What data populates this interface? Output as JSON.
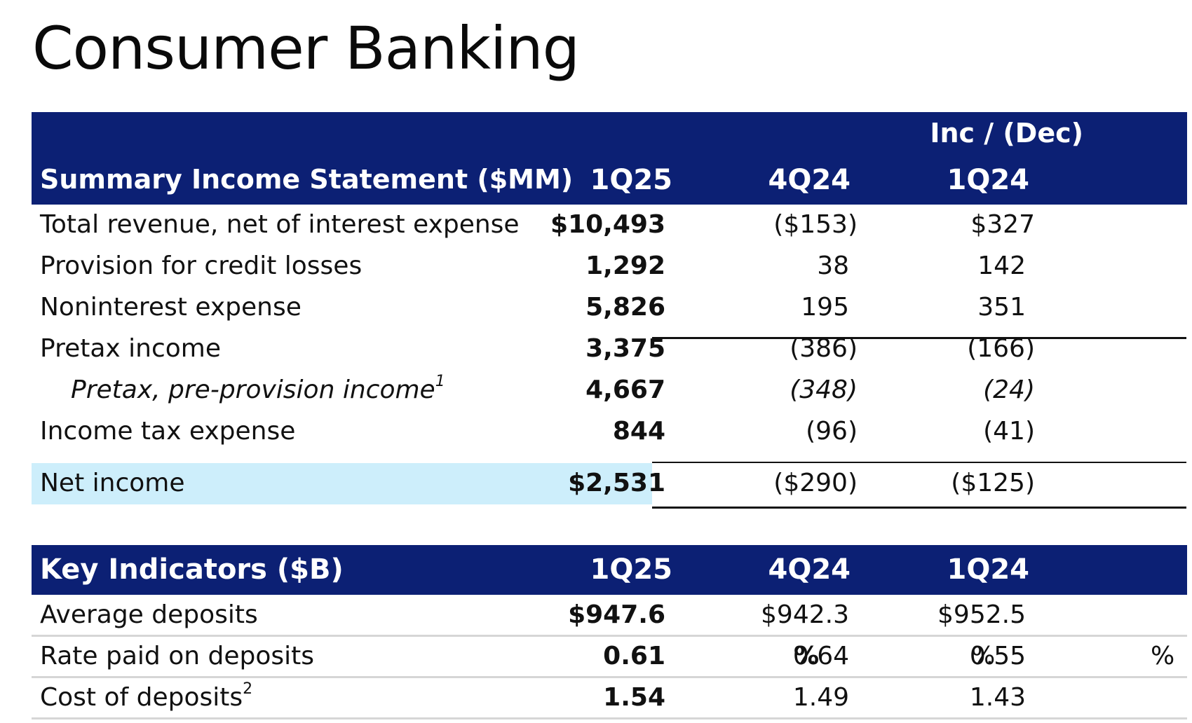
{
  "title": "Consumer Banking",
  "income_table": {
    "group_header": "Inc / (Dec)",
    "title": "Summary Income Statement ($MM)",
    "columns": [
      "1Q25",
      "4Q24",
      "1Q24"
    ],
    "rows": [
      {
        "label": "Total revenue, net of interest expense",
        "values": [
          "$10,493",
          "($153)",
          "$327"
        ]
      },
      {
        "label": "Provision for credit losses",
        "values": [
          "1,292",
          "38",
          "142"
        ]
      },
      {
        "label": "Noninterest expense",
        "values": [
          "5,826",
          "195",
          "351"
        ]
      },
      {
        "label": "Pretax income",
        "values": [
          "3,375",
          "(386)",
          "(166)"
        ]
      },
      {
        "label": "Pretax, pre-provision income",
        "footnote": "1",
        "values": [
          "4,667",
          "(348)",
          "(24)"
        ]
      },
      {
        "label": "Income tax expense",
        "values": [
          "844",
          "(96)",
          "(41)"
        ]
      },
      {
        "label": "Net income",
        "values": [
          "$2,531",
          "($290)",
          "($125)"
        ]
      }
    ]
  },
  "indicators_table": {
    "title": "Key Indicators ($B)",
    "columns": [
      "1Q25",
      "4Q24",
      "1Q24"
    ],
    "rows": [
      {
        "label": "Average deposits",
        "values": [
          "$947.6",
          "$942.3",
          "$952.5"
        ]
      },
      {
        "label": "Rate paid on deposits",
        "values": [
          "0.61",
          "0.64",
          "0.55"
        ],
        "unit": "%"
      },
      {
        "label": "Cost of deposits",
        "footnote": "2",
        "values": [
          "1.54",
          "1.49",
          "1.43"
        ]
      }
    ]
  }
}
